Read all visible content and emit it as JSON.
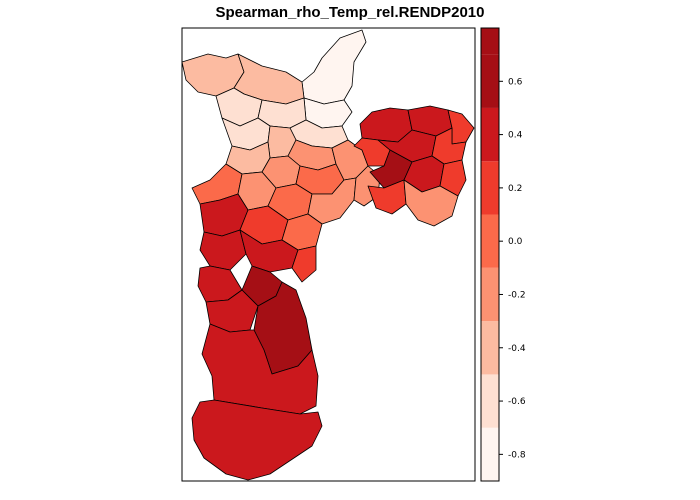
{
  "map": {
    "title": "Spearman_rho_Temp_rel.RENDP2010",
    "variable": "Spearman rho",
    "legend": {
      "type": "graduated-color",
      "breaks": [
        -0.9,
        -0.7,
        -0.5,
        -0.3,
        -0.1,
        0.1,
        0.3,
        0.5,
        0.7,
        0.8
      ],
      "colors": [
        "#FFF5F0",
        "#FEE0D2",
        "#FCBBA1",
        "#FC9272",
        "#FB6A4A",
        "#EF3B2C",
        "#CB181D",
        "#A50F15",
        "#A50F15"
      ],
      "tick_values": [
        -0.8,
        -0.6,
        -0.4,
        -0.2,
        0.0,
        0.2,
        0.4,
        0.6
      ],
      "tick_labels": [
        "-0.8",
        "-0.6",
        "-0.4",
        "-0.2",
        "0.0",
        "0.2",
        "0.4",
        "0.6"
      ]
    }
  },
  "colors": {
    "border": "#000000",
    "background": "#ffffff"
  }
}
